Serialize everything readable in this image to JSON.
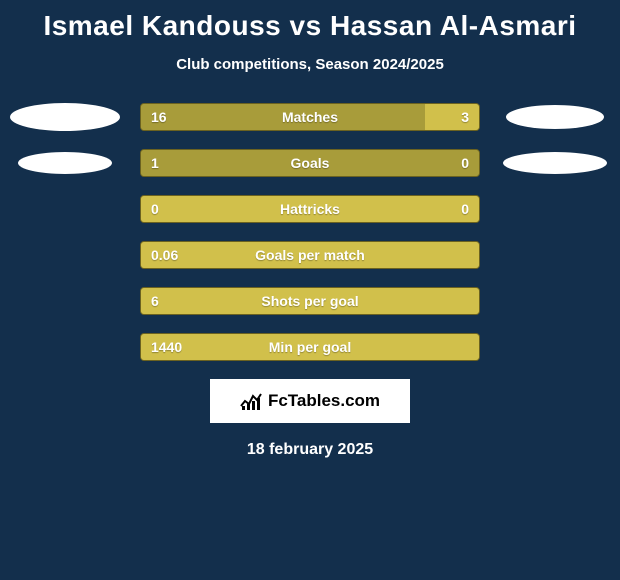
{
  "title": "Ismael Kandouss vs Hassan Al-Asmari",
  "subtitle": "Club competitions, Season 2024/2025",
  "date": "18 february 2025",
  "logo_text": "FcTables.com",
  "colors": {
    "background": "#132f4c",
    "bar_base": "#a89c3a",
    "bar_highlight": "#d1c04b",
    "bar_border": "#6b6220",
    "text": "#ffffff",
    "logo_bg": "#ffffff",
    "logo_text": "#000000"
  },
  "ellipses": {
    "left1": {
      "w": 112,
      "h": 28
    },
    "left2": {
      "w": 94,
      "h": 22
    },
    "right1": {
      "w": 98,
      "h": 24
    },
    "right2": {
      "w": 104,
      "h": 22
    }
  },
  "rows": [
    {
      "label": "Matches",
      "left": "16",
      "right": "3",
      "left_pct": 84,
      "right_pct": 16
    },
    {
      "label": "Goals",
      "left": "1",
      "right": "0",
      "left_pct": 100,
      "right_pct": 0
    },
    {
      "label": "Hattricks",
      "left": "0",
      "right": "0",
      "left_pct": 0,
      "right_pct": 100
    },
    {
      "label": "Goals per match",
      "left": "0.06",
      "right": "",
      "left_pct": 0,
      "right_pct": 100
    },
    {
      "label": "Shots per goal",
      "left": "6",
      "right": "",
      "left_pct": 0,
      "right_pct": 100
    },
    {
      "label": "Min per goal",
      "left": "1440",
      "right": "",
      "left_pct": 0,
      "right_pct": 100
    }
  ]
}
